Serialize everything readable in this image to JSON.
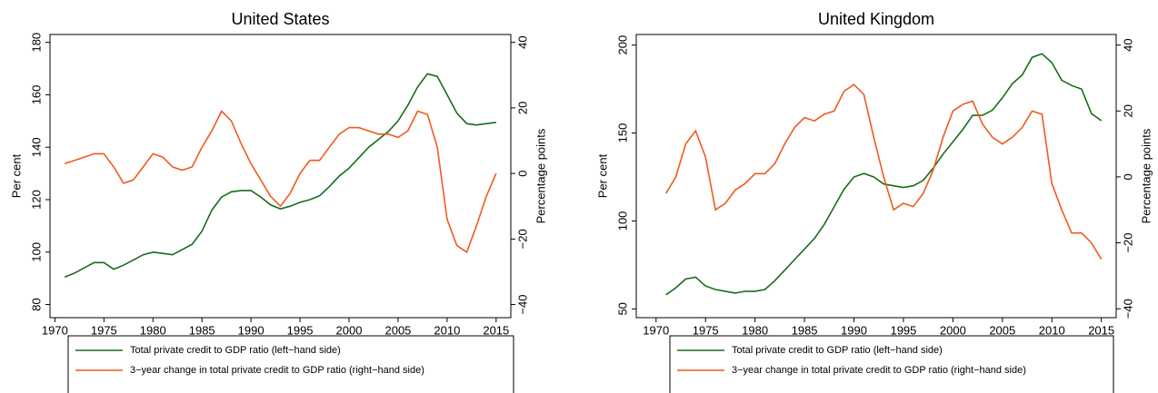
{
  "chart_data": [
    {
      "type": "line",
      "title": "United States",
      "y_label": "Per cent",
      "y2_label": "Percentage points",
      "x": [
        1971,
        1972,
        1973,
        1974,
        1975,
        1976,
        1977,
        1978,
        1979,
        1980,
        1981,
        1982,
        1983,
        1984,
        1985,
        1986,
        1987,
        1988,
        1989,
        1990,
        1991,
        1992,
        1993,
        1994,
        1995,
        1996,
        1997,
        1998,
        1999,
        2000,
        2001,
        2002,
        2003,
        2004,
        2005,
        2006,
        2007,
        2008,
        2009,
        2010,
        2011,
        2012,
        2013,
        2014,
        2015
      ],
      "series": [
        {
          "name": "Total private credit to GDP ratio (left−hand side)",
          "color": "#1a6b1a",
          "values": [
            90.5,
            92,
            94,
            96,
            96,
            93.5,
            95,
            97,
            99,
            100,
            99.5,
            99,
            101,
            103,
            108,
            116,
            121,
            123,
            123.5,
            123.5,
            121,
            118,
            116.5,
            117.5,
            119,
            120,
            121.5,
            125,
            129,
            132,
            136,
            140,
            143,
            146,
            150,
            156,
            163,
            168,
            167,
            160,
            153,
            149,
            148.5,
            149,
            149.5
          ]
        },
        {
          "name": "3−year change in total private credit to GDP ratio (right−hand side)",
          "color": "#f05a1e",
          "axis": "y2",
          "values": [
            3,
            4,
            5,
            6,
            6,
            2,
            -3,
            -2,
            2,
            6,
            5,
            2,
            1,
            2,
            8,
            13,
            19,
            16,
            9,
            3,
            -2,
            -7,
            -10,
            -6,
            0,
            4,
            4,
            8,
            12,
            14,
            14,
            13,
            12,
            12,
            11,
            13,
            19,
            18,
            8,
            -14,
            -22,
            -24,
            -16,
            -7,
            0
          ]
        }
      ],
      "xlim": [
        1969.5,
        2016.5
      ],
      "xticks": [
        1970,
        1975,
        1980,
        1985,
        1990,
        1995,
        2000,
        2005,
        2010,
        2015
      ],
      "ylim": [
        75,
        183
      ],
      "yticks": [
        80,
        100,
        120,
        140,
        160,
        180
      ],
      "y2lim": [
        -44,
        42.4
      ],
      "y2ticks": [
        {
          "value": -40,
          "label": "−40"
        },
        {
          "value": -20,
          "label": "−20"
        },
        0,
        20,
        40
      ]
    },
    {
      "type": "line",
      "title": "United Kingdom",
      "y_label": "Per cent",
      "y2_label": "Percentage points",
      "x": [
        1971,
        1972,
        1973,
        1974,
        1975,
        1976,
        1977,
        1978,
        1979,
        1980,
        1981,
        1982,
        1983,
        1984,
        1985,
        1986,
        1987,
        1988,
        1989,
        1990,
        1991,
        1992,
        1993,
        1994,
        1995,
        1996,
        1997,
        1998,
        1999,
        2000,
        2001,
        2002,
        2003,
        2004,
        2005,
        2006,
        2007,
        2008,
        2009,
        2010,
        2011,
        2012,
        2013,
        2014,
        2015
      ],
      "series": [
        {
          "name": "Total private credit to GDP ratio (left−hand side)",
          "color": "#1a6b1a",
          "values": [
            58,
            62,
            67,
            68,
            63,
            61,
            60,
            59,
            60,
            60,
            61,
            66,
            72,
            78,
            84,
            90,
            98,
            108,
            118,
            125,
            127,
            125,
            121,
            120,
            119,
            120,
            123,
            130,
            138,
            145,
            152,
            160,
            160,
            163,
            170,
            178,
            183,
            193,
            195,
            190,
            180,
            177,
            175,
            161,
            157
          ]
        },
        {
          "name": "3−year change in total private credit to GDP ratio (right−hand side)",
          "color": "#f05a1e",
          "axis": "y2",
          "values": [
            -5,
            0,
            10,
            14,
            6,
            -10,
            -8,
            -4,
            -2,
            1,
            1,
            4,
            10,
            15,
            18,
            17,
            19,
            20,
            26,
            28,
            25,
            12,
            0,
            -10,
            -8,
            -9,
            -5,
            2,
            12,
            20,
            22,
            23,
            16,
            12,
            10,
            12,
            15,
            20,
            19,
            -2,
            -10,
            -17,
            -17,
            -20,
            -25
          ]
        }
      ],
      "xlim": [
        1968,
        2016.5
      ],
      "xticks": [
        1970,
        1975,
        1980,
        1985,
        1990,
        1995,
        2000,
        2005,
        2010,
        2015
      ],
      "ylim": [
        45,
        206
      ],
      "yticks": [
        50,
        100,
        150,
        200
      ],
      "y2lim": [
        -42.7,
        43.2
      ],
      "y2ticks": [
        {
          "value": -40,
          "label": "−40"
        },
        {
          "value": -20,
          "label": "−20"
        },
        0,
        20,
        40
      ]
    }
  ]
}
